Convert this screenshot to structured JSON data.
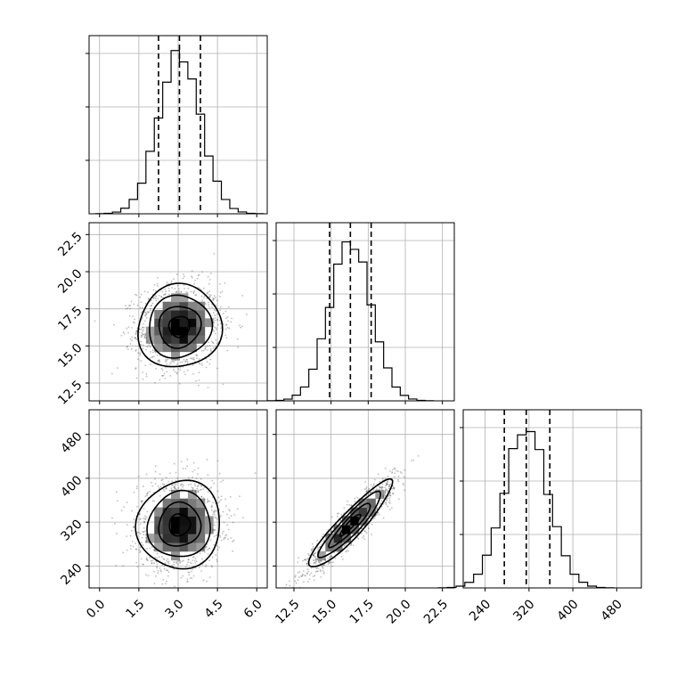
{
  "chart_data": {
    "type": "corner",
    "colors": {
      "line": "#000000",
      "grid": "#b0b0b0",
      "points": "#444444"
    },
    "grid": true,
    "parameters": [
      {
        "index": 0,
        "range": [
          -0.4,
          6.4
        ],
        "ticks": [
          "0.0",
          "1.5",
          "3.0",
          "4.5",
          "6.0"
        ],
        "tick_values": [
          0,
          1.5,
          3,
          4.5,
          6
        ],
        "mean": 3.05,
        "std": 0.8,
        "quantiles": [
          2.25,
          3.05,
          3.85
        ]
      },
      {
        "index": 1,
        "range": [
          11.3,
          23.3
        ],
        "ticks": [
          "12.5",
          "15.0",
          "17.5",
          "20.0",
          "22.5"
        ],
        "tick_values": [
          12.5,
          15,
          17.5,
          20,
          22.5
        ],
        "mean": 16.3,
        "std": 1.4,
        "quantiles": [
          14.9,
          16.3,
          17.7
        ]
      },
      {
        "index": 2,
        "range": [
          200,
          525
        ],
        "ticks": [
          "240",
          "320",
          "400",
          "480"
        ],
        "tick_values": [
          240,
          320,
          400,
          480
        ],
        "mean": 315,
        "std": 40,
        "quantiles": [
          275,
          315,
          358
        ]
      }
    ],
    "correlations": {
      "0-1": 0.05,
      "0-2": 0.05,
      "1-2": 0.92
    }
  }
}
